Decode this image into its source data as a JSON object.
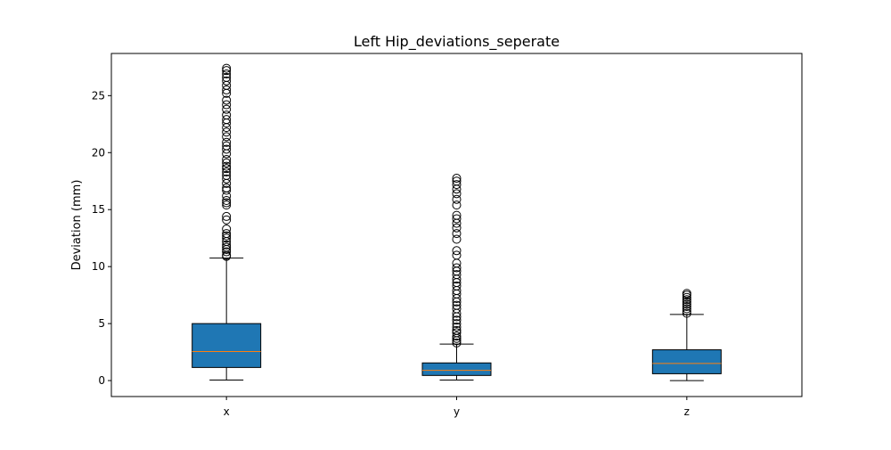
{
  "chart_data": {
    "type": "boxplot",
    "title": "Left Hip_deviations_seperate",
    "xlabel": "",
    "ylabel": "Deviation (mm)",
    "categories": [
      "x",
      "y",
      "z"
    ],
    "ylim": [
      -1.4,
      28.7
    ],
    "yticks": [
      0,
      5,
      10,
      15,
      20,
      25
    ],
    "grid": false,
    "box_color": "#1f77b4",
    "median_color": "#ff7f0e",
    "boxes": [
      {
        "category": "x",
        "whisker_low": 0.05,
        "q1": 1.15,
        "median": 2.55,
        "q3": 5.0,
        "whisker_high": 10.75,
        "outliers": [
          10.9,
          11.0,
          11.3,
          11.5,
          11.7,
          11.9,
          12.2,
          12.5,
          12.7,
          12.9,
          13.3,
          14.1,
          14.4,
          15.4,
          15.6,
          15.8,
          16.2,
          16.7,
          16.9,
          17.3,
          17.7,
          18.0,
          18.3,
          18.6,
          18.8,
          19.1,
          19.4,
          19.9,
          20.3,
          20.6,
          20.9,
          21.4,
          21.8,
          22.2,
          22.6,
          22.9,
          23.3,
          23.8,
          24.2,
          24.6,
          25.2,
          25.5,
          25.9,
          26.3,
          26.6,
          26.9,
          27.2,
          27.4
        ]
      },
      {
        "category": "y",
        "whisker_low": 0.05,
        "q1": 0.45,
        "median": 0.9,
        "q3": 1.55,
        "whisker_high": 3.2,
        "outliers": [
          3.3,
          3.5,
          3.7,
          3.9,
          4.2,
          4.4,
          4.7,
          5.0,
          5.3,
          5.6,
          5.9,
          6.3,
          6.6,
          6.9,
          7.2,
          7.6,
          7.9,
          8.3,
          8.6,
          8.9,
          9.3,
          9.6,
          9.9,
          10.3,
          11.0,
          11.4,
          12.4,
          12.9,
          13.4,
          13.8,
          14.2,
          14.5,
          15.4,
          15.9,
          16.4,
          16.8,
          17.2,
          17.5,
          17.75
        ]
      },
      {
        "category": "z",
        "whisker_low": 0.0,
        "q1": 0.6,
        "median": 1.5,
        "q3": 2.7,
        "whisker_high": 5.8,
        "outliers": [
          5.9,
          6.1,
          6.3,
          6.5,
          6.7,
          6.9,
          7.1,
          7.3,
          7.5,
          7.65
        ]
      }
    ]
  }
}
